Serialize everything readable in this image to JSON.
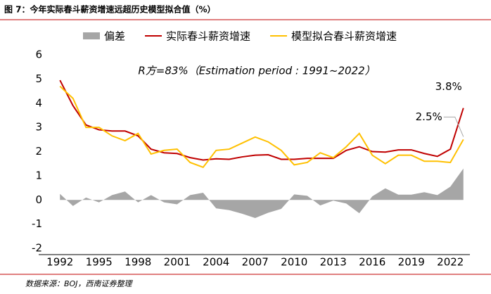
{
  "chart_data": {
    "type": "line",
    "title": "图 7：今年实际春斗薪资增速远超历史模型拟合值（%）",
    "annotation": "R方=83%（Estimation period : 1991~2022）",
    "source": "数据来源：BOJ，西南证券整理",
    "x": [
      1992,
      1993,
      1994,
      1995,
      1996,
      1997,
      1998,
      1999,
      2000,
      2001,
      2002,
      2003,
      2004,
      2005,
      2006,
      2007,
      2008,
      2009,
      2010,
      2011,
      2012,
      2013,
      2014,
      2015,
      2016,
      2017,
      2018,
      2019,
      2020,
      2021,
      2022,
      2023
    ],
    "xlim": [
      1991.5,
      2023.5
    ],
    "xticks": [
      1992,
      1995,
      1998,
      2001,
      2004,
      2007,
      2010,
      2013,
      2016,
      2019,
      2022
    ],
    "ylim": [
      -2,
      6
    ],
    "yticks": [
      -2,
      -1,
      0,
      1,
      2,
      3,
      4,
      5,
      6
    ],
    "legend": "top",
    "series": [
      {
        "name": "偏差",
        "kind": "area",
        "color": "#a6a6a6",
        "values": [
          0.25,
          -0.25,
          0.1,
          -0.1,
          0.2,
          0.35,
          -0.1,
          0.2,
          -0.1,
          -0.18,
          0.2,
          0.3,
          -0.35,
          -0.42,
          -0.57,
          -0.75,
          -0.53,
          -0.37,
          0.23,
          0.17,
          -0.23,
          -0.03,
          -0.15,
          -0.55,
          0.15,
          0.48,
          0.22,
          0.22,
          0.32,
          0.2,
          0.55,
          1.3
        ]
      },
      {
        "name": "实际春斗薪资增速",
        "kind": "line",
        "color": "#c00000",
        "values": [
          4.95,
          3.9,
          3.1,
          2.9,
          2.85,
          2.85,
          2.65,
          2.1,
          1.95,
          1.92,
          1.75,
          1.65,
          1.7,
          1.68,
          1.78,
          1.85,
          1.87,
          1.68,
          1.68,
          1.72,
          1.72,
          1.72,
          2.05,
          2.2,
          2.0,
          1.98,
          2.07,
          2.07,
          1.92,
          1.8,
          2.1,
          3.8
        ],
        "value_labels": [
          null,
          null,
          null,
          null,
          null,
          null,
          null,
          null,
          null,
          null,
          null,
          null,
          null,
          null,
          null,
          null,
          null,
          null,
          null,
          null,
          null,
          null,
          null,
          null,
          null,
          null,
          null,
          null,
          null,
          null,
          null,
          "3.8%"
        ]
      },
      {
        "name": "模型拟合春斗薪资增速",
        "kind": "line",
        "color": "#ffc000",
        "values": [
          4.7,
          4.2,
          3.0,
          3.0,
          2.65,
          2.45,
          2.75,
          1.9,
          2.05,
          2.1,
          1.55,
          1.35,
          2.05,
          2.1,
          2.35,
          2.6,
          2.4,
          2.05,
          1.45,
          1.55,
          1.95,
          1.75,
          2.2,
          2.75,
          1.85,
          1.5,
          1.85,
          1.85,
          1.6,
          1.6,
          1.55,
          2.5
        ],
        "value_labels": [
          null,
          null,
          null,
          null,
          null,
          null,
          null,
          null,
          null,
          null,
          null,
          null,
          null,
          null,
          null,
          null,
          null,
          null,
          null,
          null,
          null,
          null,
          null,
          null,
          null,
          null,
          null,
          null,
          null,
          null,
          null,
          "2.5%"
        ]
      }
    ]
  }
}
